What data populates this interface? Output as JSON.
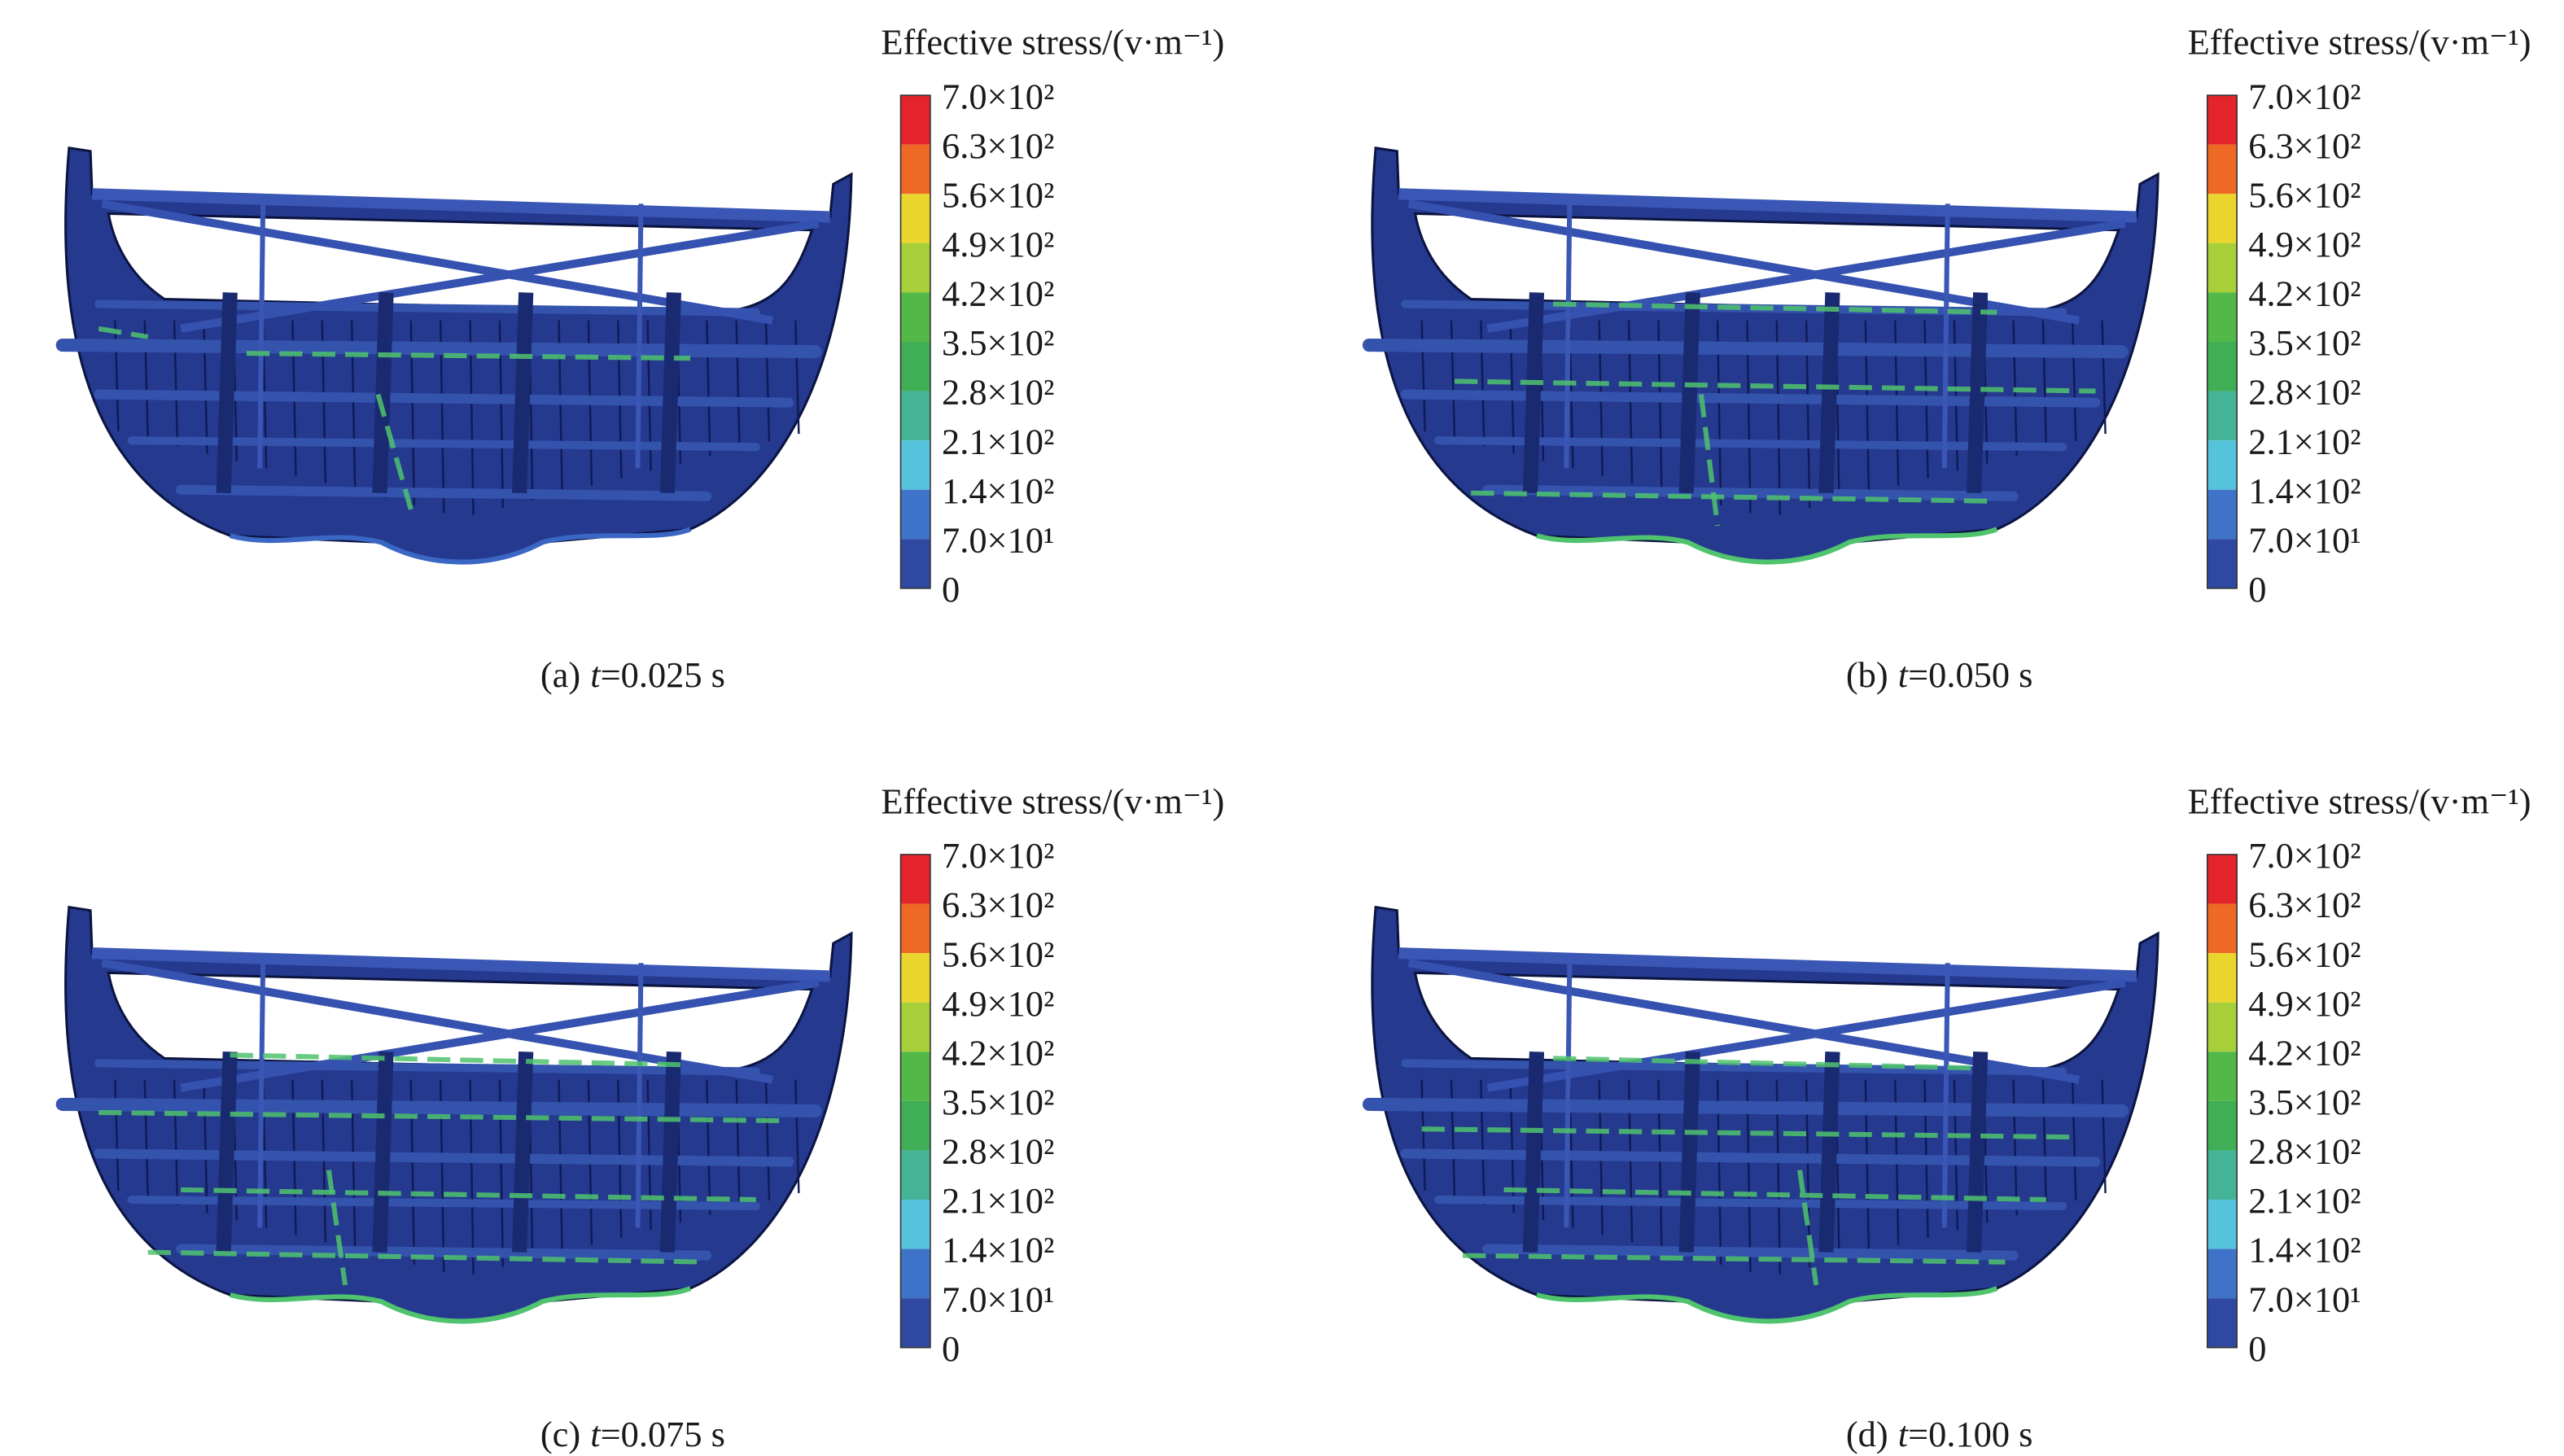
{
  "panels": [
    {
      "colorbar": {
        "title": "Effective stress/(v·m⁻¹)",
        "ticks": [
          "7.0×10²",
          "6.3×10²",
          "5.6×10²",
          "4.9×10²",
          "4.2×10²",
          "3.5×10²",
          "2.8×10²",
          "2.1×10²",
          "1.4×10²",
          "7.0×10¹",
          "0"
        ],
        "colors": [
          "#e3242b",
          "#ee6a24",
          "#e9d52c",
          "#a6cf3a",
          "#52b848",
          "#3fae55",
          "#45b496",
          "#56c3dc",
          "#3f73c9",
          "#2f49a2"
        ]
      },
      "caption": {
        "label": "(a)",
        "variable": "t",
        "value": "=0.025 s"
      }
    },
    {
      "colorbar": {
        "title": "Effective stress/(v·m⁻¹)",
        "ticks": [
          "7.0×10²",
          "6.3×10²",
          "5.6×10²",
          "4.9×10²",
          "4.2×10²",
          "3.5×10²",
          "2.8×10²",
          "2.1×10²",
          "1.4×10²",
          "7.0×10¹",
          "0"
        ],
        "colors": [
          "#e3242b",
          "#ee6a24",
          "#e9d52c",
          "#a6cf3a",
          "#52b848",
          "#3fae55",
          "#45b496",
          "#56c3dc",
          "#3f73c9",
          "#2f49a2"
        ]
      },
      "caption": {
        "label": "(b)",
        "variable": "t",
        "value": "=0.050 s"
      }
    },
    {
      "colorbar": {
        "title": "Effective stress/(v·m⁻¹)",
        "ticks": [
          "7.0×10²",
          "6.3×10²",
          "5.6×10²",
          "4.9×10²",
          "4.2×10²",
          "3.5×10²",
          "2.8×10²",
          "2.1×10²",
          "1.4×10²",
          "7.0×10¹",
          "0"
        ],
        "colors": [
          "#e3242b",
          "#ee6a24",
          "#e9d52c",
          "#a6cf3a",
          "#52b848",
          "#3fae55",
          "#45b496",
          "#56c3dc",
          "#3f73c9",
          "#2f49a2"
        ]
      },
      "caption": {
        "label": "(c)",
        "variable": "t",
        "value": "=0.075 s"
      }
    },
    {
      "colorbar": {
        "title": "Effective stress/(v·m⁻¹)",
        "ticks": [
          "7.0×10²",
          "6.3×10²",
          "5.6×10²",
          "4.9×10²",
          "4.2×10²",
          "3.5×10²",
          "2.8×10²",
          "2.1×10²",
          "1.4×10²",
          "7.0×10¹",
          "0"
        ],
        "colors": [
          "#e3242b",
          "#ee6a24",
          "#e9d52c",
          "#a6cf3a",
          "#52b848",
          "#3fae55",
          "#45b496",
          "#56c3dc",
          "#3f73c9",
          "#2f49a2"
        ]
      },
      "caption": {
        "label": "(d)",
        "variable": "t",
        "value": "=0.100 s"
      }
    }
  ]
}
